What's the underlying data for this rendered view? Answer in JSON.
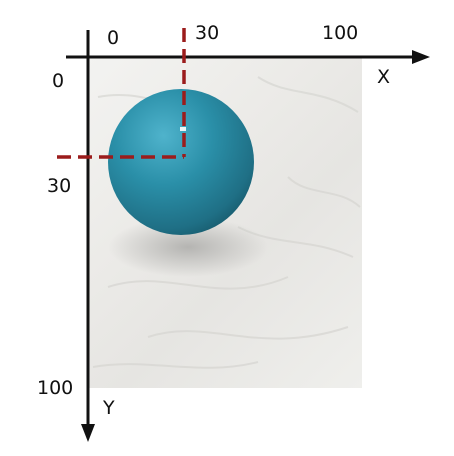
{
  "diagram": {
    "x_axis": {
      "label": "X",
      "ticks": [
        "0",
        "30",
        "100"
      ]
    },
    "y_axis": {
      "label": "Y",
      "ticks": [
        "0",
        "30",
        "100"
      ]
    },
    "ball_center": {
      "x": 30,
      "y": 30
    },
    "colors": {
      "axis": "#111111",
      "guide": "#9b1c1c",
      "ball": "#2a8fa8",
      "cloth": "#ecebe8"
    }
  }
}
